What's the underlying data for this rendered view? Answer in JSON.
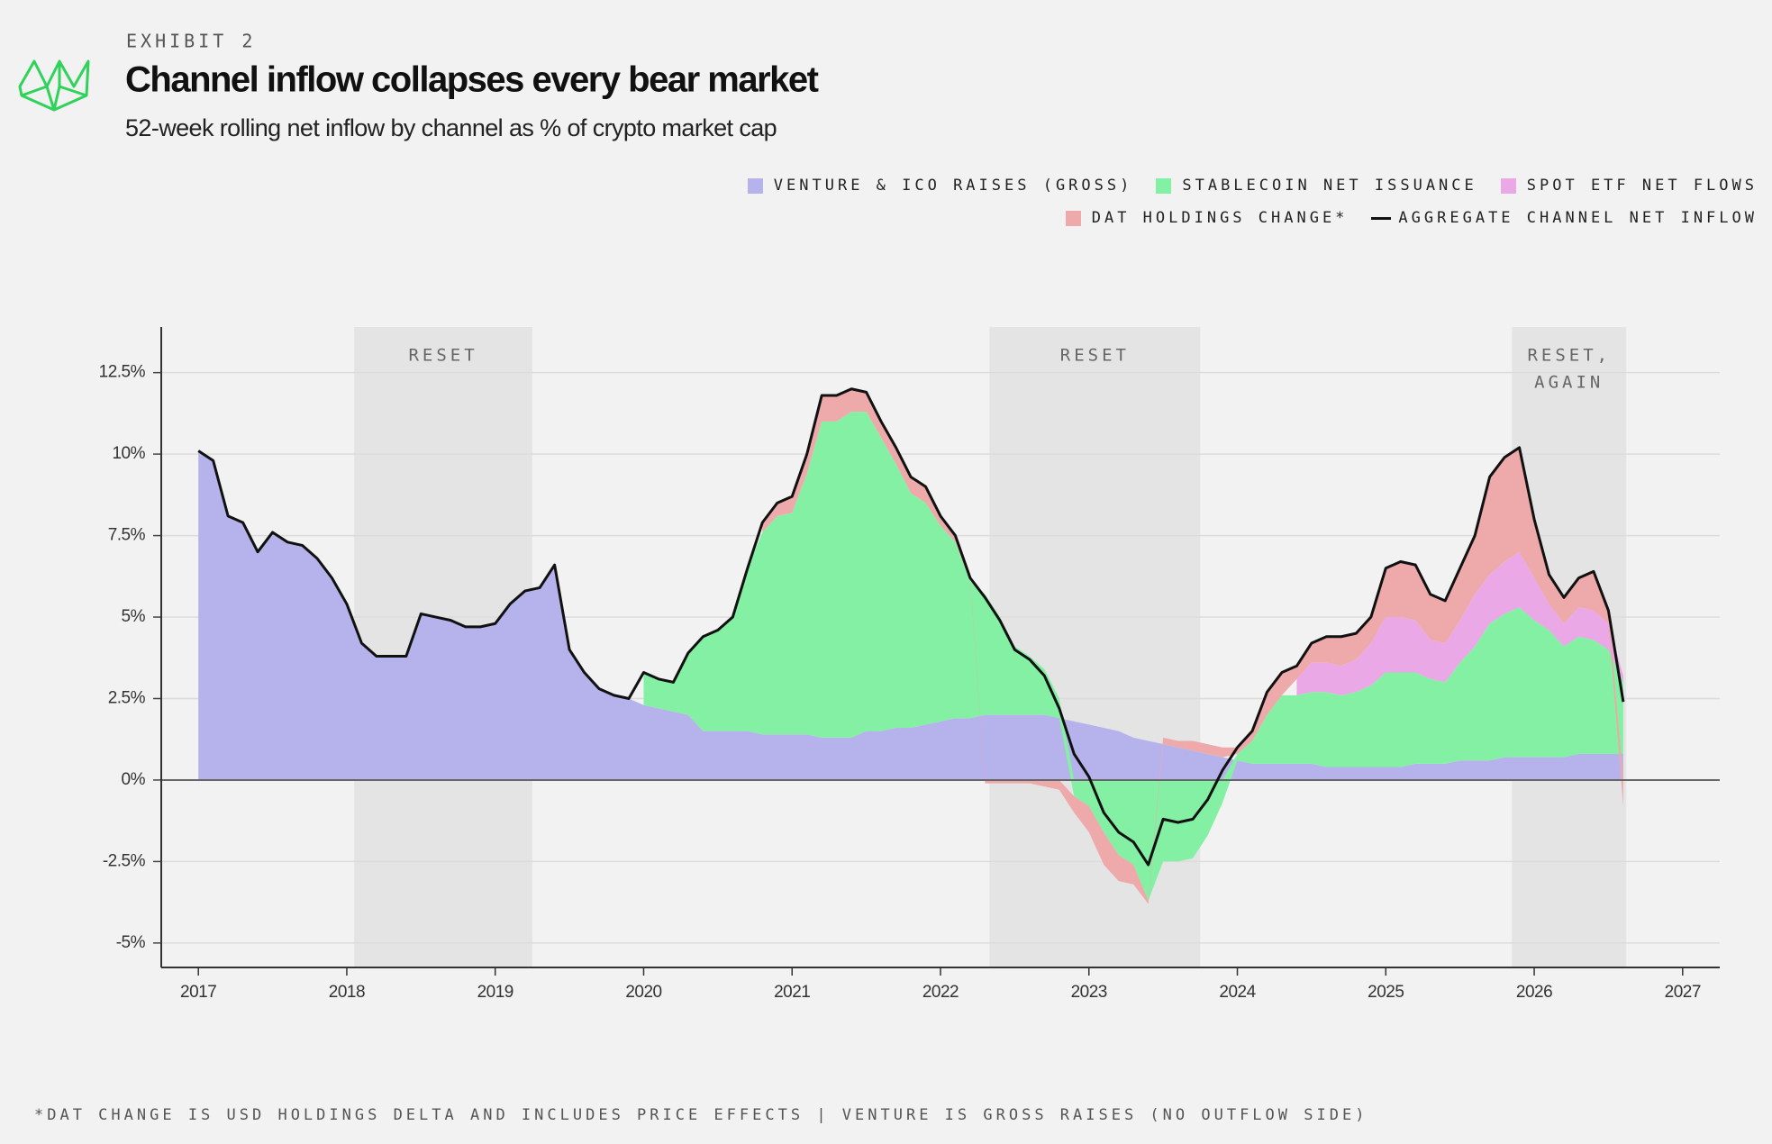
{
  "chart_data": {
    "type": "area",
    "stacked": true,
    "kicker": "EXHIBIT 2",
    "title": "Channel inflow collapses every bear market",
    "subtitle": "52-week rolling net inflow by channel as % of crypto market cap",
    "footnote": "*DAT CHANGE IS USD HOLDINGS DELTA AND INCLUDES PRICE EFFECTS | VENTURE IS GROSS RAISES (NO OUTFLOW SIDE)",
    "x": [
      2017,
      2017.1,
      2017.2,
      2017.3,
      2017.4,
      2017.5,
      2017.6,
      2017.7,
      2017.8,
      2017.9,
      2018,
      2018.1,
      2018.2,
      2018.3,
      2018.4,
      2018.5,
      2018.6,
      2018.7,
      2018.8,
      2018.9,
      2019,
      2019.1,
      2019.2,
      2019.3,
      2019.4,
      2019.5,
      2019.6,
      2019.7,
      2019.8,
      2019.9,
      2020,
      2020.1,
      2020.2,
      2020.3,
      2020.4,
      2020.5,
      2020.6,
      2020.7,
      2020.8,
      2020.9,
      2021,
      2021.1,
      2021.2,
      2021.3,
      2021.4,
      2021.5,
      2021.6,
      2021.7,
      2021.8,
      2021.9,
      2022,
      2022.1,
      2022.2,
      2022.3,
      2022.4,
      2022.5,
      2022.6,
      2022.7,
      2022.8,
      2022.9,
      2023,
      2023.1,
      2023.2,
      2023.3,
      2023.4,
      2023.5,
      2023.6,
      2023.7,
      2023.8,
      2023.9,
      2024,
      2024.1,
      2024.2,
      2024.3,
      2024.4,
      2024.5,
      2024.6,
      2024.7,
      2024.8,
      2024.9,
      2025,
      2025.1,
      2025.2,
      2025.3,
      2025.4,
      2025.5,
      2025.6,
      2025.7,
      2025.8,
      2025.9,
      2026,
      2026.1,
      2026.2,
      2026.3,
      2026.4,
      2026.5,
      2026.6
    ],
    "series": [
      {
        "name": "VENTURE & ICO RAISES (GROSS)",
        "type": "area",
        "color": "#b6b3ec",
        "values": [
          10.1,
          9.8,
          8.1,
          7.9,
          7.0,
          7.6,
          7.3,
          7.2,
          6.8,
          6.2,
          5.4,
          4.2,
          3.8,
          3.8,
          3.8,
          5.1,
          5.0,
          4.9,
          4.7,
          4.7,
          4.8,
          5.4,
          5.8,
          5.9,
          6.6,
          4.0,
          3.3,
          2.8,
          2.6,
          2.5,
          2.3,
          2.2,
          2.1,
          2.0,
          1.5,
          1.5,
          1.5,
          1.5,
          1.4,
          1.4,
          1.4,
          1.4,
          1.3,
          1.3,
          1.3,
          1.5,
          1.5,
          1.6,
          1.6,
          1.7,
          1.8,
          1.9,
          1.9,
          2.0,
          2.0,
          2.0,
          2.0,
          2.0,
          1.9,
          1.8,
          1.7,
          1.6,
          1.5,
          1.3,
          1.2,
          1.1,
          1.0,
          0.9,
          0.8,
          0.7,
          0.6,
          0.5,
          0.5,
          0.5,
          0.5,
          0.5,
          0.4,
          0.4,
          0.4,
          0.4,
          0.4,
          0.4,
          0.5,
          0.5,
          0.5,
          0.6,
          0.6,
          0.6,
          0.7,
          0.7,
          0.7,
          0.7,
          0.7,
          0.8,
          0.8,
          0.8,
          0.8
        ]
      },
      {
        "name": "STABLECOIN NET ISSUANCE",
        "type": "area",
        "color": "#84f0a4",
        "values": [
          null,
          null,
          null,
          null,
          null,
          null,
          null,
          null,
          null,
          null,
          null,
          null,
          null,
          null,
          null,
          null,
          null,
          null,
          null,
          null,
          null,
          null,
          null,
          null,
          null,
          null,
          null,
          null,
          null,
          null,
          1.0,
          0.9,
          0.9,
          1.9,
          2.9,
          3.1,
          3.5,
          5.0,
          6.2,
          6.7,
          6.8,
          8.0,
          9.7,
          9.7,
          10.0,
          9.8,
          9.0,
          8.1,
          7.2,
          6.8,
          6.0,
          5.4,
          4.2,
          3.7,
          3.0,
          2.1,
          1.8,
          1.4,
          0.6,
          -0.5,
          -0.8,
          -1.6,
          -2.3,
          -2.6,
          -3.7,
          -2.5,
          -2.5,
          -2.4,
          -1.7,
          -0.7,
          0.2,
          0.7,
          1.5,
          2.1,
          2.1,
          2.2,
          2.3,
          2.2,
          2.3,
          2.5,
          2.9,
          2.9,
          2.8,
          2.6,
          2.5,
          3.0,
          3.5,
          4.2,
          4.4,
          4.6,
          4.2,
          3.9,
          3.4,
          3.6,
          3.5,
          3.2,
          2.2
        ]
      },
      {
        "name": "SPOT ETF NET FLOWS",
        "type": "area",
        "color": "#eaa8e6",
        "values": [
          null,
          null,
          null,
          null,
          null,
          null,
          null,
          null,
          null,
          null,
          null,
          null,
          null,
          null,
          null,
          null,
          null,
          null,
          null,
          null,
          null,
          null,
          null,
          null,
          null,
          null,
          null,
          null,
          null,
          null,
          null,
          null,
          null,
          null,
          null,
          null,
          null,
          null,
          null,
          null,
          null,
          null,
          null,
          null,
          null,
          null,
          null,
          null,
          null,
          null,
          null,
          null,
          null,
          null,
          null,
          null,
          null,
          null,
          null,
          null,
          null,
          null,
          null,
          null,
          null,
          null,
          null,
          null,
          null,
          null,
          null,
          null,
          null,
          null,
          0.5,
          0.9,
          0.9,
          0.9,
          1.0,
          1.3,
          1.7,
          1.7,
          1.6,
          1.2,
          1.2,
          1.3,
          1.6,
          1.5,
          1.6,
          1.7,
          1.3,
          0.8,
          0.7,
          0.9,
          0.9,
          0.8,
          0.2
        ]
      },
      {
        "name": "DAT HOLDINGS CHANGE*",
        "type": "area",
        "color": "#eeaaaa",
        "values": [
          null,
          null,
          null,
          null,
          null,
          null,
          null,
          null,
          null,
          null,
          null,
          null,
          null,
          null,
          null,
          null,
          null,
          null,
          null,
          null,
          null,
          null,
          null,
          null,
          null,
          null,
          null,
          null,
          null,
          null,
          null,
          null,
          null,
          null,
          null,
          null,
          null,
          null,
          0.3,
          0.4,
          0.5,
          0.6,
          0.8,
          0.8,
          0.7,
          0.6,
          0.5,
          0.5,
          0.5,
          0.5,
          0.3,
          0.2,
          0.1,
          -0.1,
          -0.1,
          -0.1,
          -0.1,
          -0.2,
          -0.3,
          -0.5,
          -0.8,
          -1.0,
          -0.8,
          -0.6,
          -0.1,
          0.2,
          0.2,
          0.3,
          0.3,
          0.3,
          0.2,
          0.3,
          0.7,
          0.7,
          0.4,
          0.6,
          0.8,
          0.9,
          0.8,
          0.8,
          1.5,
          1.7,
          1.7,
          1.4,
          1.3,
          1.6,
          1.8,
          3.0,
          3.2,
          3.2,
          1.8,
          0.9,
          0.8,
          0.9,
          1.2,
          0.4,
          -0.8
        ]
      },
      {
        "name": "AGGREGATE CHANNEL NET INFLOW",
        "type": "line",
        "color": "#111111",
        "values": [
          10.1,
          9.8,
          8.1,
          7.9,
          7.0,
          7.6,
          7.3,
          7.2,
          6.8,
          6.2,
          5.4,
          4.2,
          3.8,
          3.8,
          3.8,
          5.1,
          5.0,
          4.9,
          4.7,
          4.7,
          4.8,
          5.4,
          5.8,
          5.9,
          6.6,
          4.0,
          3.3,
          2.8,
          2.6,
          2.5,
          3.3,
          3.1,
          3.0,
          3.9,
          4.4,
          4.6,
          5.0,
          6.5,
          7.9,
          8.5,
          8.7,
          10.0,
          11.8,
          11.8,
          12.0,
          11.9,
          11.0,
          10.2,
          9.3,
          9.0,
          8.1,
          7.5,
          6.2,
          5.6,
          4.9,
          4.0,
          3.7,
          3.2,
          2.2,
          0.8,
          0.1,
          -1.0,
          -1.6,
          -1.9,
          -2.6,
          -1.2,
          -1.3,
          -1.2,
          -0.6,
          0.3,
          1.0,
          1.5,
          2.7,
          3.3,
          3.5,
          4.2,
          4.4,
          4.4,
          4.5,
          5.0,
          6.5,
          6.7,
          6.6,
          5.7,
          5.5,
          6.5,
          7.5,
          9.3,
          9.9,
          10.2,
          8.0,
          6.3,
          5.6,
          6.2,
          6.4,
          5.2,
          2.4
        ]
      }
    ],
    "shaded_regions": [
      {
        "x": [
          2018.05,
          2019.25
        ],
        "label_lines": [
          "RESET"
        ]
      },
      {
        "x": [
          2022.33,
          2023.75
        ],
        "label_lines": [
          "RESET"
        ]
      },
      {
        "x": [
          2025.85,
          2026.62
        ],
        "label_lines": [
          "RESET,",
          "AGAIN"
        ]
      }
    ],
    "xlim": [
      2016.75,
      2027.25
    ],
    "ylim": [
      -5.75,
      13.9
    ],
    "xticks": [
      2017,
      2018,
      2019,
      2020,
      2021,
      2022,
      2023,
      2024,
      2025,
      2026,
      2027
    ],
    "yticks": [
      {
        "value": -5,
        "label": "-5%"
      },
      {
        "value": -2.5,
        "label": "-2.5%"
      },
      {
        "value": 0,
        "label": "0%"
      },
      {
        "value": 2.5,
        "label": "2.5%"
      },
      {
        "value": 5,
        "label": "5%"
      },
      {
        "value": 7.5,
        "label": "7.5%"
      },
      {
        "value": 10,
        "label": "10%"
      },
      {
        "value": 12.5,
        "label": "12.5%"
      }
    ],
    "grid": true,
    "legend": "top-right"
  }
}
